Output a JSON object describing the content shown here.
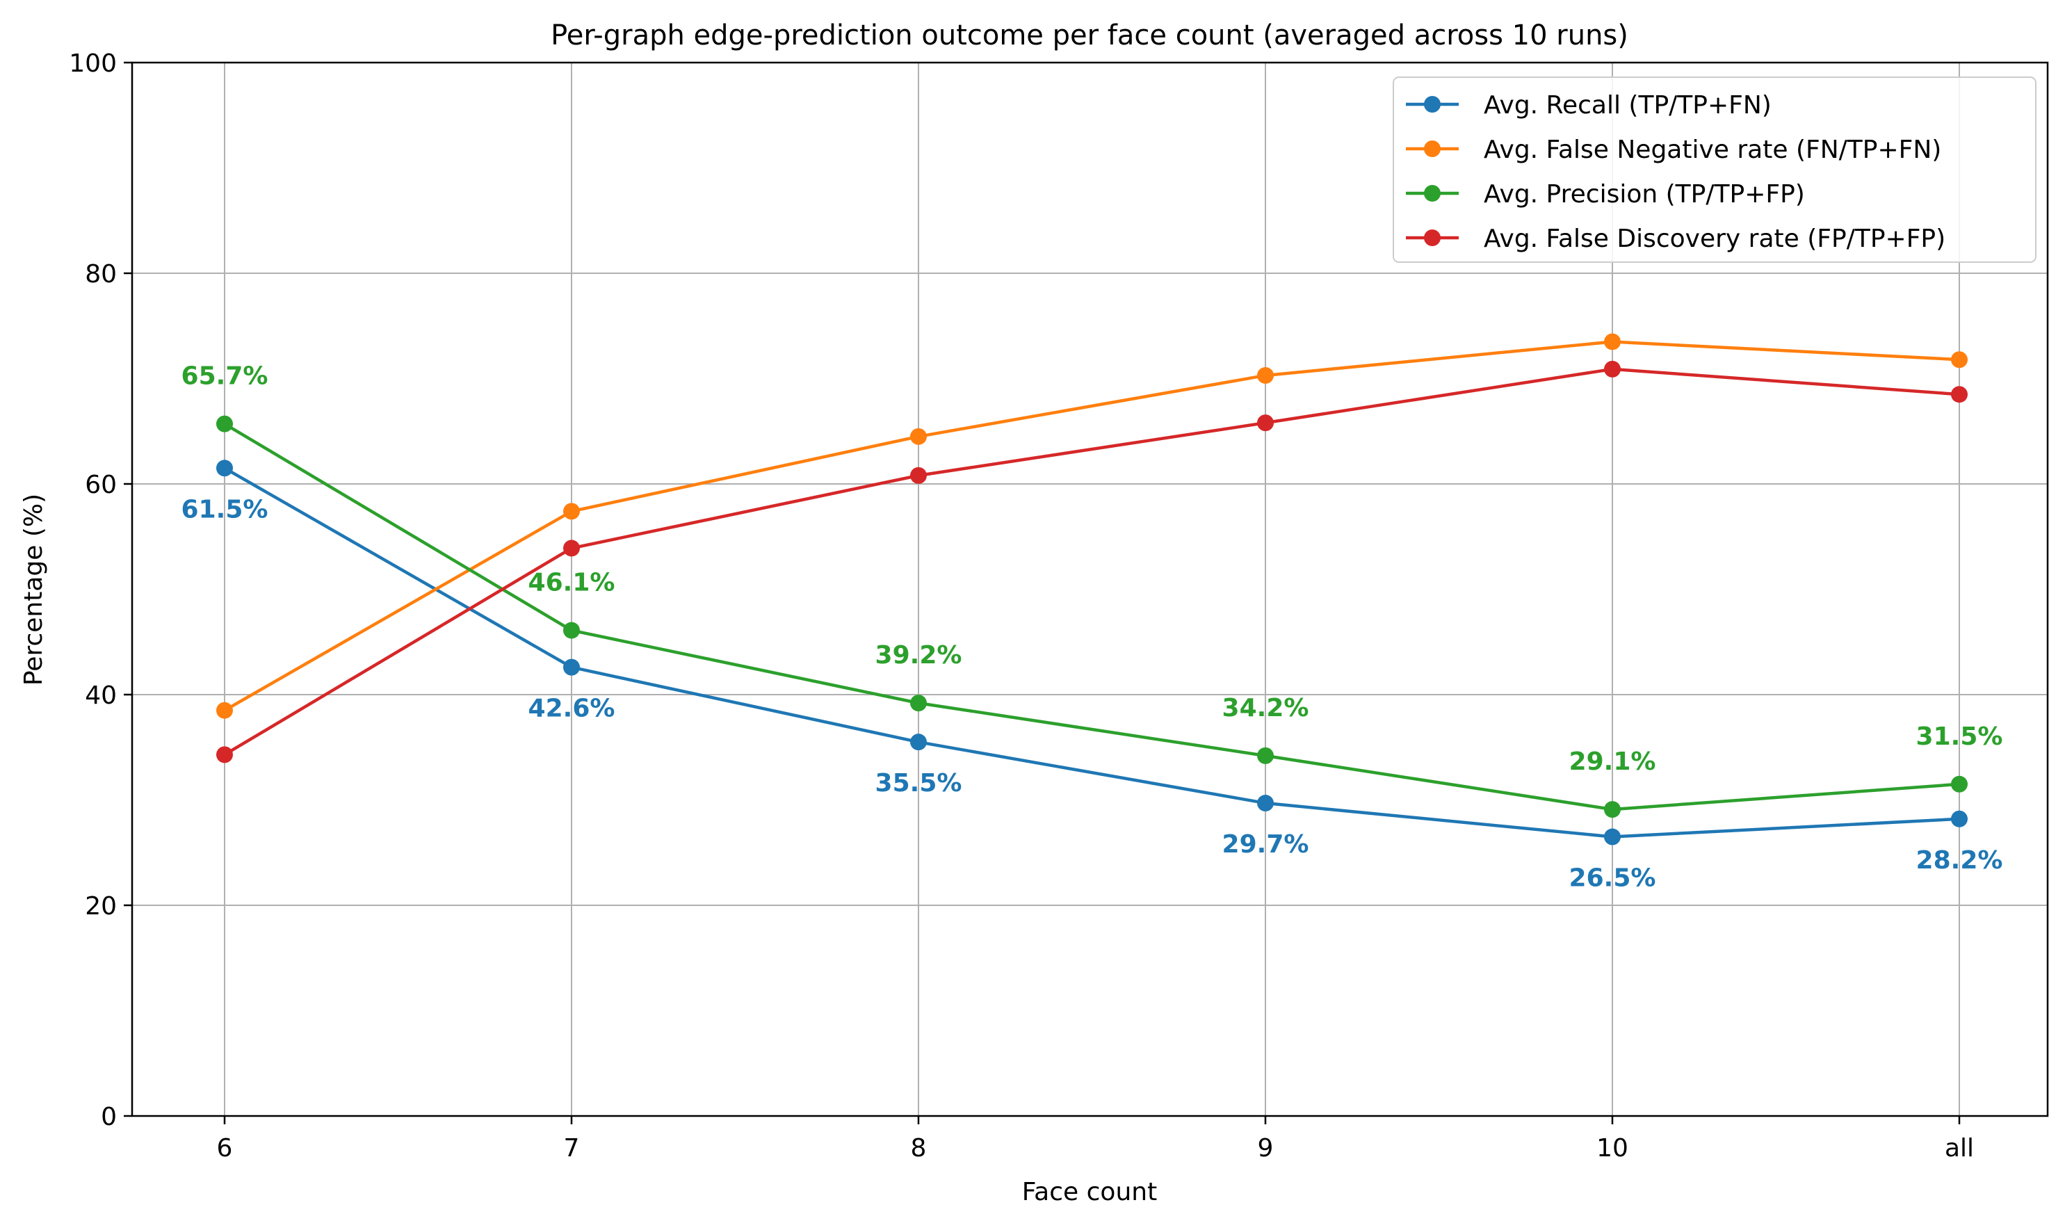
{
  "chart_data": {
    "type": "line",
    "title": "Per-graph edge-prediction outcome per face count (averaged across 10 runs)",
    "xlabel": "Face count",
    "ylabel": "Percentage (%)",
    "categories": [
      "6",
      "7",
      "8",
      "9",
      "10",
      "all"
    ],
    "ylim": [
      0,
      100
    ],
    "yticks": [
      0,
      20,
      40,
      60,
      80,
      100
    ],
    "grid": true,
    "legend_position": "top-right",
    "series": [
      {
        "name": "Avg. Recall (TP/TP+FN)",
        "color": "#1f77b4",
        "values": [
          61.5,
          42.6,
          35.5,
          29.7,
          26.5,
          28.2
        ],
        "labels": [
          "61.5%",
          "42.6%",
          "35.5%",
          "29.7%",
          "26.5%",
          "28.2%"
        ],
        "label_position": "below"
      },
      {
        "name": "Avg. False Negative rate (FN/TP+FN)",
        "color": "#ff7f0e",
        "values": [
          38.5,
          57.4,
          64.5,
          70.3,
          73.5,
          71.8
        ]
      },
      {
        "name": "Avg. Precision (TP/TP+FP)",
        "color": "#2ca02c",
        "values": [
          65.7,
          46.1,
          39.2,
          34.2,
          29.1,
          31.5
        ],
        "labels": [
          "65.7%",
          "46.1%",
          "39.2%",
          "34.2%",
          "29.1%",
          "31.5%"
        ],
        "label_position": "above"
      },
      {
        "name": "Avg. False Discovery rate (FP/TP+FP)",
        "color": "#d62728",
        "values": [
          34.3,
          53.9,
          60.8,
          65.8,
          70.9,
          68.5
        ]
      }
    ]
  }
}
